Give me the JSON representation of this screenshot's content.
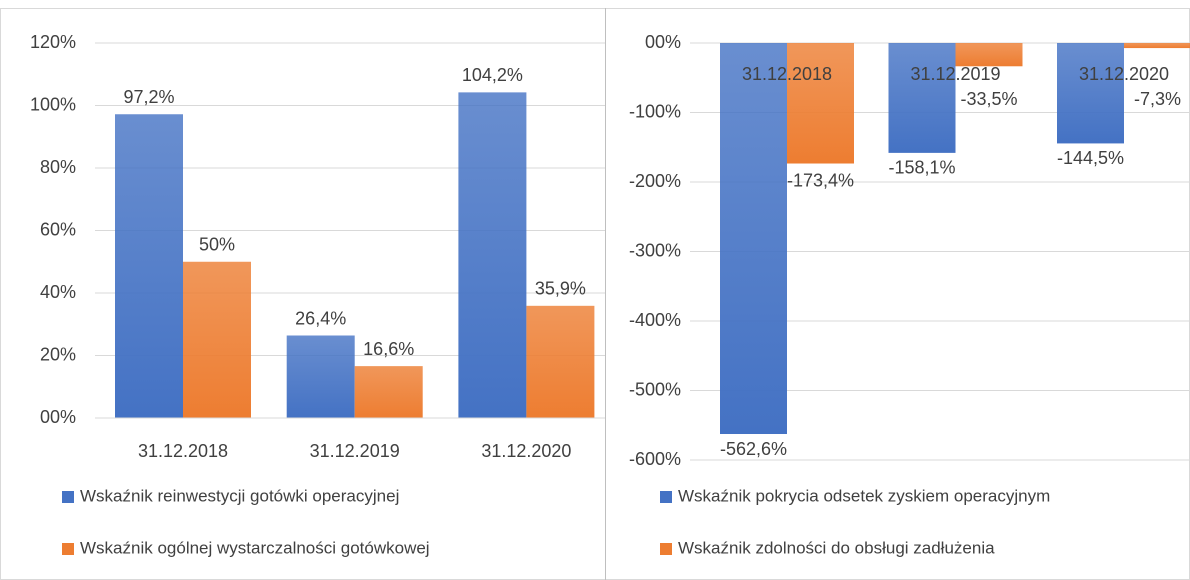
{
  "chart_data": [
    {
      "type": "bar",
      "categories": [
        "31.12.2018",
        "31.12.2019",
        "31.12.2020"
      ],
      "series": [
        {
          "name": "Wskaźnik reinwestycji gotówki operacyjnej",
          "color": "#4472c4",
          "values": [
            97.2,
            26.4,
            104.2
          ],
          "value_labels": [
            "97,2%",
            "26,4%",
            "104,2%"
          ]
        },
        {
          "name": "Wskaźnik ogólnej wystarczalności gotówkowej",
          "color": "#ed7d31",
          "values": [
            50,
            16.6,
            35.9
          ],
          "value_labels": [
            "50%",
            "16,6%",
            "35,9%"
          ]
        }
      ],
      "ylim": [
        0,
        120
      ],
      "yticks": [
        {
          "value": 0,
          "label": "00%"
        },
        {
          "value": 20,
          "label": "20%"
        },
        {
          "value": 40,
          "label": "40%"
        },
        {
          "value": 60,
          "label": "60%"
        },
        {
          "value": 80,
          "label": "80%"
        },
        {
          "value": 100,
          "label": "100%"
        },
        {
          "value": 120,
          "label": "120%"
        }
      ],
      "grid": true
    },
    {
      "type": "bar",
      "categories": [
        "31.12.2018",
        "31.12.2019",
        "31.12.2020"
      ],
      "series": [
        {
          "name": "Wskaźnik pokrycia odsetek zyskiem operacyjnym",
          "color": "#4472c4",
          "values": [
            -562.6,
            -158.1,
            -144.5
          ],
          "value_labels": [
            "-562,6%",
            "-158,1%",
            "-144,5%"
          ]
        },
        {
          "name": "Wskaźnik zdolności do obsługi zadłużenia",
          "color": "#ed7d31",
          "values": [
            -173.4,
            -33.5,
            -7.3
          ],
          "value_labels": [
            "-173,4%",
            "-33,5%",
            "-7,3%"
          ]
        }
      ],
      "ylim": [
        -600,
        0
      ],
      "yticks": [
        {
          "value": 0,
          "label": "00%"
        },
        {
          "value": -100,
          "label": "-100%"
        },
        {
          "value": -200,
          "label": "-200%"
        },
        {
          "value": -300,
          "label": "-300%"
        },
        {
          "value": -400,
          "label": "-400%"
        },
        {
          "value": -500,
          "label": "-500%"
        },
        {
          "value": -600,
          "label": "-600%"
        }
      ],
      "grid": true
    }
  ]
}
